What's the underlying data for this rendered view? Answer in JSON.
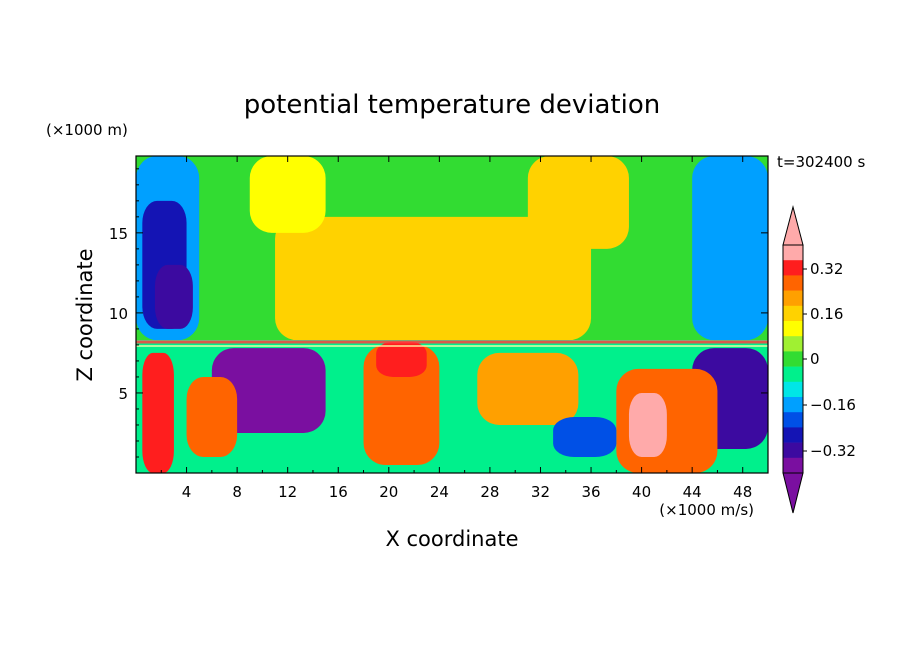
{
  "chart_data": {
    "type": "heatmap",
    "title": "potential temperature deviation",
    "time_label": "t=302400 s",
    "xlabel": "X coordinate",
    "ylabel": "Z coordinate",
    "x_unit": "(×1000 m/s)",
    "y_unit": "(×1000 m)",
    "xlim": [
      0,
      50
    ],
    "ylim": [
      0,
      19.8
    ],
    "x_ticks": [
      "4",
      "8",
      "12",
      "16",
      "20",
      "24",
      "28",
      "32",
      "36",
      "40",
      "44",
      "48"
    ],
    "y_ticks": [
      "5",
      "10",
      "15"
    ],
    "colorbar": {
      "levels": [
        -0.4,
        -0.36,
        -0.32,
        -0.28,
        -0.24,
        -0.2,
        -0.16,
        -0.12,
        -0.08,
        -0.04,
        0,
        0.04,
        0.08,
        0.12,
        0.16,
        0.2,
        0.24,
        0.28,
        0.32,
        0.36,
        0.4
      ],
      "colors": [
        "#7a0fa0",
        "#3c0aa0",
        "#1414b4",
        "#0050e6",
        "#00a0ff",
        "#00e6e6",
        "#00f08c",
        "#32dc32",
        "#a0f032",
        "#ffff00",
        "#ffd200",
        "#ffa000",
        "#ff6400",
        "#ff1e1e",
        "#ffaaaa"
      ],
      "tick_labels": [
        "0.32",
        "0.16",
        "0",
        "−0.16",
        "−0.32"
      ],
      "extend": "both"
    },
    "regions": [
      {
        "x": [
          0,
          50
        ],
        "z": [
          8.3,
          19.8
        ],
        "value": 0.0
      },
      {
        "x": [
          0,
          5
        ],
        "z": [
          8.3,
          19.8
        ],
        "value": -0.18
      },
      {
        "x": [
          0.5,
          4
        ],
        "z": [
          9,
          17
        ],
        "value": -0.26
      },
      {
        "x": [
          1.5,
          4.5
        ],
        "z": [
          9,
          13
        ],
        "value": -0.32
      },
      {
        "x": [
          11,
          36
        ],
        "z": [
          8.3,
          16
        ],
        "value": 0.14
      },
      {
        "x": [
          31,
          39
        ],
        "z": [
          14,
          19.8
        ],
        "value": 0.14
      },
      {
        "x": [
          9,
          15
        ],
        "z": [
          15,
          19.8
        ],
        "value": 0.08
      },
      {
        "x": [
          44,
          50
        ],
        "z": [
          8.3,
          19.8
        ],
        "value": -0.14
      },
      {
        "x": [
          0,
          50
        ],
        "z": [
          0,
          8.3
        ],
        "value": -0.06
      },
      {
        "x": [
          6,
          15
        ],
        "z": [
          2.5,
          7.8
        ],
        "value": -0.36
      },
      {
        "x": [
          44,
          50
        ],
        "z": [
          1.5,
          7.8
        ],
        "value": -0.3
      },
      {
        "x": [
          38,
          46
        ],
        "z": [
          0,
          6.5
        ],
        "value": 0.26
      },
      {
        "x": [
          39,
          42
        ],
        "z": [
          1,
          5
        ],
        "value": 0.36
      },
      {
        "x": [
          27,
          35
        ],
        "z": [
          3,
          7.5
        ],
        "value": 0.2
      },
      {
        "x": [
          33,
          38
        ],
        "z": [
          1,
          3.5
        ],
        "value": -0.24
      },
      {
        "x": [
          18,
          24
        ],
        "z": [
          0.5,
          8
        ],
        "value": 0.24
      },
      {
        "x": [
          19,
          23
        ],
        "z": [
          6,
          8.2
        ],
        "value": 0.33
      },
      {
        "x": [
          0.5,
          3
        ],
        "z": [
          0,
          7.5
        ],
        "value": 0.3
      },
      {
        "x": [
          4,
          8
        ],
        "z": [
          1,
          6
        ],
        "value": 0.24
      }
    ]
  }
}
